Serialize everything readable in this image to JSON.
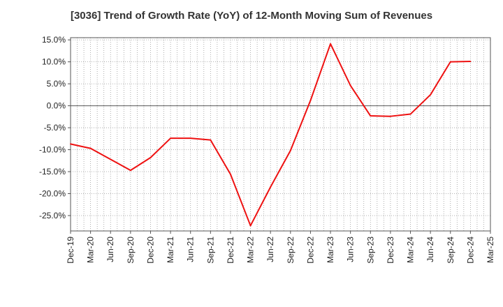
{
  "chart_data": {
    "type": "line",
    "title": "[3036]  Trend of Growth Rate (YoY) of 12-Month Moving Sum of Revenues",
    "xlabel": "",
    "ylabel": "",
    "ylim": [
      -28.5,
      15.5
    ],
    "grid": true,
    "y_ticks": [
      "15.0%",
      "10.0%",
      "5.0%",
      "0.0%",
      "-5.0%",
      "-10.0%",
      "-15.0%",
      "-20.0%",
      "-25.0%"
    ],
    "y_tick_values": [
      15,
      10,
      5,
      0,
      -5,
      -10,
      -15,
      -20,
      -25
    ],
    "categories": [
      "Dec-19",
      "Mar-20",
      "Jun-20",
      "Sep-20",
      "Dec-20",
      "Mar-21",
      "Jun-21",
      "Sep-21",
      "Dec-21",
      "Mar-22",
      "Jun-22",
      "Sep-22",
      "Dec-22",
      "Mar-23",
      "Jun-23",
      "Sep-23",
      "Dec-23",
      "Mar-24",
      "Jun-24",
      "Sep-24",
      "Dec-24",
      "Mar-25"
    ],
    "series": [
      {
        "color": "#ee1111",
        "values": [
          -8.7,
          -9.7,
          -12.2,
          -14.7,
          -11.8,
          -7.4,
          -7.4,
          -7.8,
          -15.6,
          -27.3,
          -18.5,
          -10.2,
          1.2,
          14.1,
          4.6,
          -2.3,
          -2.4,
          -1.9,
          2.5,
          10.0,
          10.1,
          null
        ]
      }
    ]
  }
}
